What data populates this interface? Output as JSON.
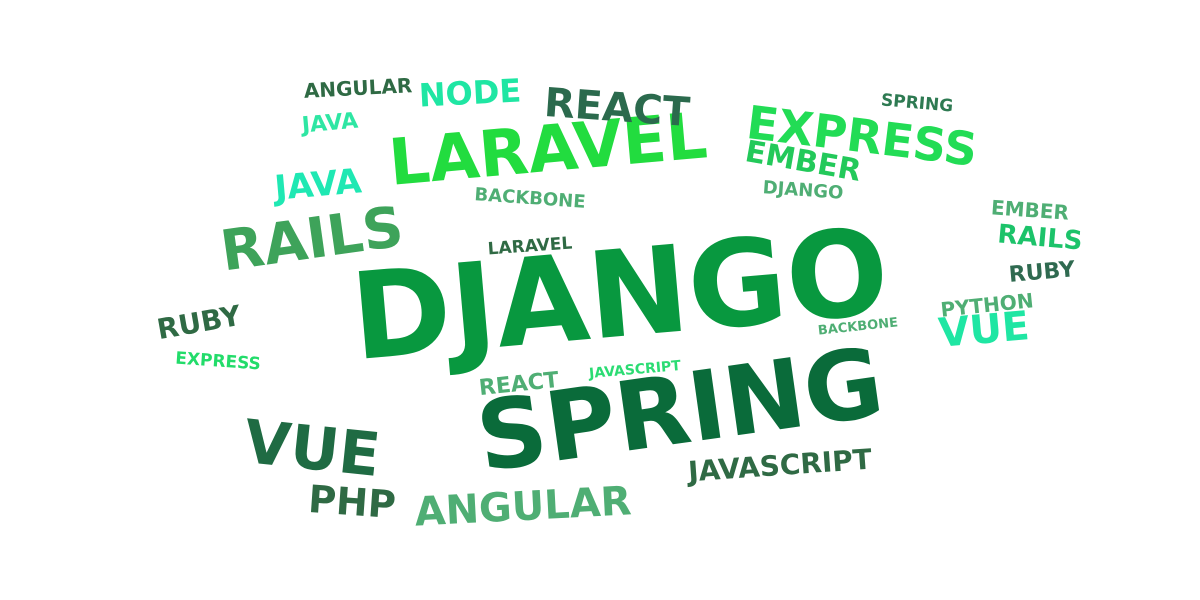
{
  "words": [
    {
      "text": "DJANGO",
      "color": "#08983f"
    },
    {
      "text": "SPRING",
      "color": "#0a6b3a"
    },
    {
      "text": "LARAVEL",
      "color": "#22dc3f"
    },
    {
      "text": "RAILS",
      "color": "#3ea35a"
    },
    {
      "text": "EXPRESS",
      "color": "#22dc55"
    },
    {
      "text": "REACT",
      "color": "#2b6a4d"
    },
    {
      "text": "NODE",
      "color": "#1fe6a3"
    },
    {
      "text": "ANGULAR",
      "color": "#2f6a44"
    },
    {
      "text": "JAVA",
      "color": "#2ee6a3"
    },
    {
      "text": "SPRING",
      "color": "#2e7a52"
    },
    {
      "text": "EMBER",
      "color": "#23c95a"
    },
    {
      "text": "JAVA",
      "color": "#1fe8b3"
    },
    {
      "text": "DJANGO",
      "color": "#4fae74"
    },
    {
      "text": "BACKBONE",
      "color": "#4fae74"
    },
    {
      "text": "EMBER",
      "color": "#4fae74"
    },
    {
      "text": "RAILS",
      "color": "#1cc36a"
    },
    {
      "text": "LARAVEL",
      "color": "#2f6a44"
    },
    {
      "text": "RUBY",
      "color": "#2f6a50"
    },
    {
      "text": "RUBY",
      "color": "#2f6a44"
    },
    {
      "text": "PYTHON",
      "color": "#4fae74"
    },
    {
      "text": "BACKBONE",
      "color": "#4fae74"
    },
    {
      "text": "VUE",
      "color": "#1fe6a3"
    },
    {
      "text": "EXPRESS",
      "color": "#22dc6a"
    },
    {
      "text": "REACT",
      "color": "#4fae74"
    },
    {
      "text": "JAVASCRIPT",
      "color": "#2bdc73"
    },
    {
      "text": "VUE",
      "color": "#1f6b43"
    },
    {
      "text": "JAVASCRIPT",
      "color": "#2f6a44"
    },
    {
      "text": "PHP",
      "color": "#2f6a44"
    },
    {
      "text": "ANGULAR",
      "color": "#4fae74"
    }
  ]
}
